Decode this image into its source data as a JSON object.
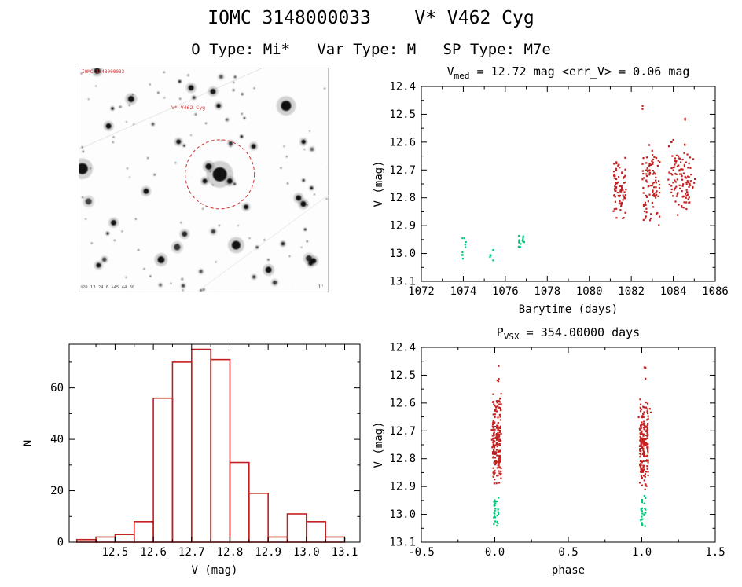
{
  "header": {
    "title": "IOMC 3148000033    V* V462 Cyg",
    "subtitle": "O Type: Mi*   Var Type: M   SP Type: M7e"
  },
  "colors": {
    "red": "#c41f1f",
    "green": "#00c878",
    "frame": "#000000"
  },
  "finder": {
    "annotations": {
      "top_left": "IOMC 3148000033",
      "target": "V* V462 Cyg",
      "bottom_left": "20 13 24.6 +45 44 30",
      "bottom_right": "1'"
    },
    "circle_color": "#cc3333",
    "seed": 20130717,
    "random_star_count": 110,
    "stars": [
      [
        0.565,
        0.475,
        9
      ],
      [
        0.52,
        0.44,
        4
      ],
      [
        0.605,
        0.505,
        3.5
      ],
      [
        0.505,
        0.505,
        3
      ],
      [
        0.83,
        0.17,
        6.5
      ],
      [
        0.015,
        0.45,
        7
      ],
      [
        0.63,
        0.79,
        5.5
      ],
      [
        0.33,
        0.855,
        4.5
      ],
      [
        0.21,
        0.14,
        4
      ],
      [
        0.12,
        0.26,
        3.5
      ],
      [
        0.45,
        0.09,
        3.5
      ],
      [
        0.7,
        0.35,
        3
      ],
      [
        0.88,
        0.58,
        3.5
      ],
      [
        0.76,
        0.9,
        4
      ],
      [
        0.94,
        0.86,
        3.5
      ],
      [
        0.27,
        0.55,
        3.5
      ],
      [
        0.14,
        0.69,
        3.5
      ],
      [
        0.4,
        0.33,
        3
      ],
      [
        0.67,
        0.62,
        3
      ],
      [
        0.56,
        0.17,
        2.8
      ],
      [
        0.9,
        0.33,
        2.8
      ],
      [
        0.08,
        0.88,
        3
      ]
    ]
  },
  "chart_data": [
    {
      "id": "lightcurve",
      "type": "scatter",
      "title_segments": [
        {
          "t": "V"
        },
        {
          "t": "med",
          "sub": true
        },
        {
          "t": " = 12.72 mag <err_V> = 0.06 mag"
        }
      ],
      "xlabel": "Barytime (days)",
      "ylabel": "V (mag)",
      "xlim": [
        1072,
        1086
      ],
      "ylim_top": 12.4,
      "ylim_bottom": 13.1,
      "xticks": [
        {
          "v": 1072,
          "label": "1072"
        },
        {
          "v": 1074,
          "label": "1074"
        },
        {
          "v": 1076,
          "label": "1076"
        },
        {
          "v": 1078,
          "label": "1078"
        },
        {
          "v": 1080,
          "label": "1080"
        },
        {
          "v": 1082,
          "label": "1082"
        },
        {
          "v": 1084,
          "label": "1084"
        },
        {
          "v": 1086,
          "label": "1086"
        }
      ],
      "yticks": [
        {
          "v": 12.4,
          "label": "12.4"
        },
        {
          "v": 12.5,
          "label": "12.5"
        },
        {
          "v": 12.6,
          "label": "12.6"
        },
        {
          "v": 12.7,
          "label": "12.7"
        },
        {
          "v": 12.8,
          "label": "12.8"
        },
        {
          "v": 12.9,
          "label": "12.9"
        },
        {
          "v": 13.0,
          "label": "13.0"
        },
        {
          "v": 13.1,
          "label": "13.1"
        }
      ],
      "clusters": [
        {
          "color": "green",
          "x": [
            1073.9,
            1074.15
          ],
          "y": [
            12.92,
            13.05
          ],
          "n": 9
        },
        {
          "color": "green",
          "x": [
            1075.25,
            1075.45
          ],
          "y": [
            12.98,
            13.03
          ],
          "n": 5
        },
        {
          "color": "green",
          "x": [
            1076.6,
            1076.95
          ],
          "y": [
            12.93,
            12.99
          ],
          "n": 16
        },
        {
          "color": "red",
          "x": [
            1081.15,
            1081.75
          ],
          "y": [
            12.62,
            12.93
          ],
          "n": 75
        },
        {
          "color": "red",
          "x": [
            1082.55,
            1083.35
          ],
          "y": [
            12.6,
            12.92
          ],
          "n": 95
        },
        {
          "color": "red",
          "x": [
            1083.85,
            1084.95
          ],
          "y": [
            12.55,
            12.88
          ],
          "n": 110
        },
        {
          "color": "red",
          "x": [
            1082.45,
            1082.55
          ],
          "y": [
            12.46,
            12.49
          ],
          "n": 2
        },
        {
          "color": "red",
          "x": [
            1084.55,
            1084.65
          ],
          "y": [
            12.5,
            12.53
          ],
          "n": 2
        }
      ]
    },
    {
      "id": "histogram",
      "type": "bar",
      "xlabel": "V (mag)",
      "ylabel": "N",
      "xlim": [
        12.38,
        13.14
      ],
      "ylim_top": 77,
      "ylim_bottom": 0,
      "xticks": [
        {
          "v": 12.5,
          "label": "12.5"
        },
        {
          "v": 12.6,
          "label": "12.6"
        },
        {
          "v": 12.7,
          "label": "12.7"
        },
        {
          "v": 12.8,
          "label": "12.8"
        },
        {
          "v": 12.9,
          "label": "12.9"
        },
        {
          "v": 13.0,
          "label": "13.0"
        },
        {
          "v": 13.1,
          "label": "13.1"
        }
      ],
      "yticks": [
        {
          "v": 0,
          "label": "0"
        },
        {
          "v": 20,
          "label": "20"
        },
        {
          "v": 40,
          "label": "40"
        },
        {
          "v": 60,
          "label": "60"
        }
      ],
      "bin_start": 12.4,
      "bin_width": 0.05,
      "values": [
        1,
        2,
        3,
        8,
        56,
        70,
        75,
        71,
        31,
        19,
        2,
        11,
        8,
        2
      ]
    },
    {
      "id": "phase",
      "type": "scatter",
      "title_segments": [
        {
          "t": "P"
        },
        {
          "t": "VSX",
          "sub": true
        },
        {
          "t": " = 354.00000 days"
        }
      ],
      "xlabel": "phase",
      "ylabel": "V (mag)",
      "xlim": [
        -0.5,
        1.5
      ],
      "ylim_top": 12.4,
      "ylim_bottom": 13.1,
      "xticks": [
        {
          "v": -0.5,
          "label": "-0.5"
        },
        {
          "v": 0,
          "label": "0.0"
        },
        {
          "v": 0.5,
          "label": "0.5"
        },
        {
          "v": 1,
          "label": "1.0"
        },
        {
          "v": 1.5,
          "label": "1.5"
        }
      ],
      "yticks": [
        {
          "v": 12.4,
          "label": "12.4"
        },
        {
          "v": 12.5,
          "label": "12.5"
        },
        {
          "v": 12.6,
          "label": "12.6"
        },
        {
          "v": 12.7,
          "label": "12.7"
        },
        {
          "v": 12.8,
          "label": "12.8"
        },
        {
          "v": 12.9,
          "label": "12.9"
        },
        {
          "v": 13.0,
          "label": "13.0"
        },
        {
          "v": 13.1,
          "label": "13.1"
        }
      ],
      "clusters": [
        {
          "color": "red",
          "x": [
            -0.015,
            0.045
          ],
          "y": [
            12.55,
            12.92
          ],
          "n": 170
        },
        {
          "color": "red",
          "x": [
            -0.03,
            0.06
          ],
          "y": [
            12.58,
            12.88
          ],
          "n": 14
        },
        {
          "color": "green",
          "x": [
            -0.012,
            0.03
          ],
          "y": [
            12.93,
            13.05
          ],
          "n": 26
        },
        {
          "color": "red",
          "x": [
            0.015,
            0.03
          ],
          "y": [
            12.46,
            12.53
          ],
          "n": 4
        },
        {
          "color": "red",
          "x": [
            0.985,
            1.045
          ],
          "y": [
            12.55,
            12.92
          ],
          "n": 170
        },
        {
          "color": "red",
          "x": [
            0.97,
            1.06
          ],
          "y": [
            12.58,
            12.88
          ],
          "n": 14
        },
        {
          "color": "green",
          "x": [
            0.988,
            1.03
          ],
          "y": [
            12.93,
            13.05
          ],
          "n": 26
        },
        {
          "color": "red",
          "x": [
            1.015,
            1.03
          ],
          "y": [
            12.46,
            12.53
          ],
          "n": 4
        }
      ]
    }
  ]
}
